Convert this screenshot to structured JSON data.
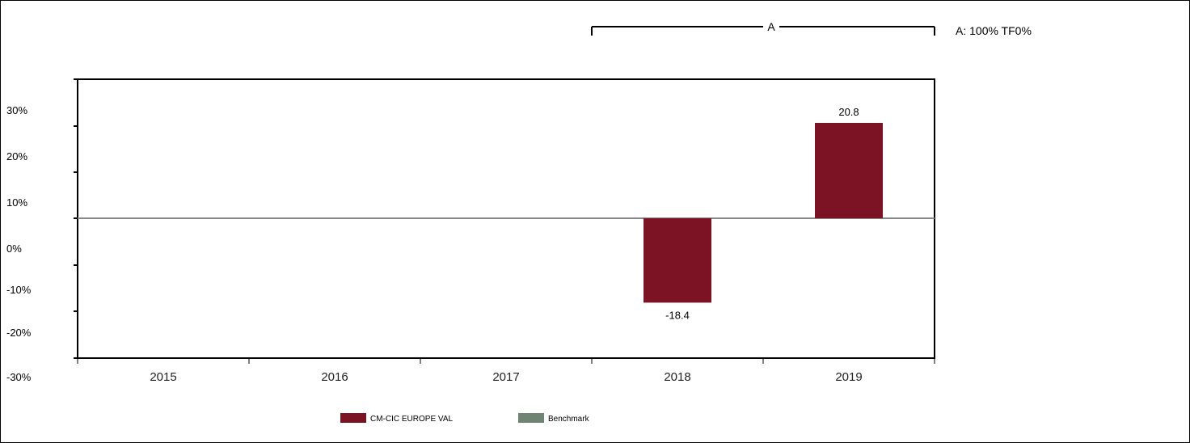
{
  "chart_data": {
    "type": "bar",
    "categories": [
      "2015",
      "2016",
      "2017",
      "2018",
      "2019"
    ],
    "series": [
      {
        "name": "CM-CIC EUROPE VAL",
        "color": "#7b1324",
        "values": [
          null,
          null,
          null,
          -18.4,
          20.8
        ]
      },
      {
        "name": "Benchmark",
        "color": "#6f8472",
        "values": [
          null,
          null,
          null,
          null,
          null
        ]
      }
    ],
    "value_labels": [
      "",
      "",
      "",
      "-18.4",
      "20.8"
    ],
    "y_ticks": [
      "30%",
      "20%",
      "10%",
      "0%",
      "-10%",
      "-20%",
      "-30%"
    ],
    "ylim": [
      -30,
      30
    ],
    "grid": false,
    "legend_position": "bottom",
    "period": {
      "label": "A",
      "legend": "A: 100% TF0%",
      "from_category": "2018",
      "to_category": "2019"
    }
  }
}
